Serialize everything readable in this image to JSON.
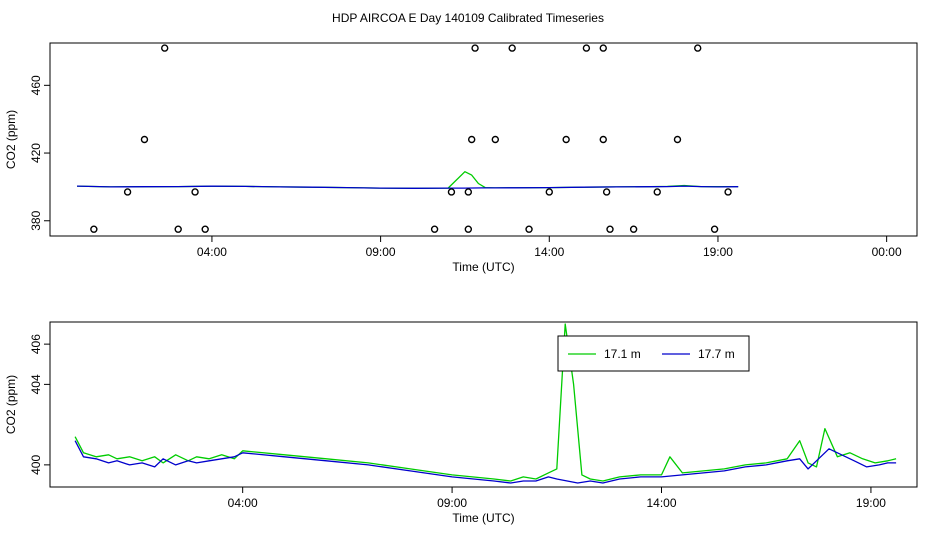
{
  "title": "HDP AIRCOA E  Day 140109  Calibrated Timeseries",
  "colors": {
    "green": "#00cc00",
    "blue": "#0000cc",
    "points": "#000000"
  },
  "chart_data": [
    {
      "type": "scatter",
      "xlabel": "Time (UTC)",
      "ylabel": "CO2 (ppm)",
      "xlim_hours": [
        -0.8,
        24.9
      ],
      "ylim": [
        371,
        485
      ],
      "x_ticks": [
        {
          "x": 4,
          "label": "04:00"
        },
        {
          "x": 9,
          "label": "09:00"
        },
        {
          "x": 14,
          "label": "14:00"
        },
        {
          "x": 19,
          "label": "19:00"
        },
        {
          "x": 24,
          "label": "00:00"
        }
      ],
      "y_ticks": [
        {
          "y": 380,
          "label": "380"
        },
        {
          "y": 420,
          "label": "420"
        },
        {
          "y": 460,
          "label": "460"
        }
      ],
      "grid": false,
      "points": [
        [
          0.5,
          375
        ],
        [
          1.5,
          397
        ],
        [
          2.0,
          428
        ],
        [
          2.6,
          482
        ],
        [
          3.0,
          375
        ],
        [
          3.5,
          397
        ],
        [
          3.8,
          375
        ],
        [
          10.6,
          375
        ],
        [
          11.1,
          397
        ],
        [
          11.6,
          375
        ],
        [
          11.6,
          397
        ],
        [
          11.7,
          428
        ],
        [
          11.8,
          482
        ],
        [
          12.4,
          428
        ],
        [
          12.9,
          482
        ],
        [
          13.4,
          375
        ],
        [
          14.0,
          397
        ],
        [
          14.5,
          428
        ],
        [
          15.1,
          482
        ],
        [
          15.6,
          482
        ],
        [
          15.6,
          428
        ],
        [
          15.7,
          397
        ],
        [
          15.8,
          375
        ],
        [
          16.5,
          375
        ],
        [
          17.2,
          397
        ],
        [
          17.8,
          428
        ],
        [
          18.4,
          482
        ],
        [
          18.9,
          375
        ],
        [
          19.3,
          397
        ]
      ],
      "series": [
        {
          "name": "17.1 m",
          "color": "#00cc00",
          "x": [
            0.0,
            1.0,
            2.0,
            3.0,
            4.0,
            5.0,
            6.0,
            7.0,
            8.0,
            9.0,
            10.0,
            11.0,
            11.5,
            11.7,
            11.9,
            12.1,
            12.4,
            13.0,
            14.0,
            15.0,
            16.0,
            17.0,
            17.5,
            18.0,
            18.5,
            19.0,
            19.6
          ],
          "y": [
            400.5,
            400.0,
            400.1,
            400.2,
            400.4,
            400.3,
            400.0,
            399.8,
            399.6,
            399.3,
            399.2,
            399.3,
            409.0,
            407.0,
            402.0,
            399.6,
            399.4,
            399.5,
            399.6,
            399.8,
            400.0,
            400.1,
            400.3,
            400.8,
            400.2,
            400.1,
            400.2
          ]
        },
        {
          "name": "17.7 m",
          "color": "#0000cc",
          "x": [
            0.0,
            1.0,
            2.0,
            3.0,
            4.0,
            5.0,
            6.0,
            7.0,
            8.0,
            9.0,
            10.0,
            11.0,
            11.5,
            12.0,
            12.4,
            13.0,
            14.0,
            15.0,
            16.0,
            17.0,
            17.5,
            18.0,
            18.5,
            19.0,
            19.6
          ],
          "y": [
            400.5,
            400.0,
            400.1,
            400.2,
            400.4,
            400.3,
            400.0,
            399.8,
            399.6,
            399.3,
            399.2,
            399.3,
            399.3,
            399.4,
            399.4,
            399.5,
            399.6,
            399.8,
            400.0,
            400.1,
            400.2,
            400.5,
            400.2,
            400.0,
            400.1
          ]
        }
      ]
    },
    {
      "type": "line",
      "xlabel": "Time (UTC)",
      "ylabel": "CO2 (ppm)",
      "xlim_hours": [
        -0.6,
        20.1
      ],
      "ylim": [
        398.9,
        407.1
      ],
      "x_ticks": [
        {
          "x": 4,
          "label": "04:00"
        },
        {
          "x": 9,
          "label": "09:00"
        },
        {
          "x": 14,
          "label": "14:00"
        },
        {
          "x": 19,
          "label": "19:00"
        }
      ],
      "y_ticks": [
        {
          "y": 400,
          "label": "400"
        },
        {
          "y": 404,
          "label": "404"
        },
        {
          "y": 406,
          "label": "406"
        }
      ],
      "grid": false,
      "legend": "top-right",
      "series": [
        {
          "name": "17.1 m",
          "color": "#00cc00",
          "x": [
            0.0,
            0.2,
            0.5,
            0.8,
            1.0,
            1.3,
            1.6,
            1.9,
            2.1,
            2.4,
            2.7,
            2.9,
            3.2,
            3.5,
            3.8,
            4.0,
            5.0,
            6.0,
            7.0,
            8.0,
            9.0,
            10.0,
            10.4,
            10.7,
            11.0,
            11.3,
            11.5,
            11.7,
            11.9,
            12.1,
            12.3,
            12.6,
            13.0,
            13.5,
            14.0,
            14.2,
            14.5,
            15.0,
            15.5,
            16.0,
            16.5,
            17.0,
            17.3,
            17.5,
            17.7,
            17.9,
            18.2,
            18.5,
            18.8,
            19.1,
            19.4,
            19.6
          ],
          "y": [
            401.4,
            400.6,
            400.4,
            400.5,
            400.3,
            400.4,
            400.2,
            400.4,
            400.1,
            400.5,
            400.2,
            400.4,
            400.3,
            400.5,
            400.3,
            400.7,
            400.5,
            400.3,
            400.1,
            399.8,
            399.5,
            399.3,
            399.2,
            399.4,
            399.3,
            399.6,
            399.8,
            407.0,
            404.0,
            399.5,
            399.3,
            399.2,
            399.4,
            399.5,
            399.5,
            400.4,
            399.6,
            399.7,
            399.8,
            400.0,
            400.1,
            400.3,
            401.2,
            400.1,
            399.9,
            401.8,
            400.4,
            400.6,
            400.3,
            400.1,
            400.2,
            400.3
          ]
        },
        {
          "name": "17.7 m",
          "color": "#0000cc",
          "x": [
            0.0,
            0.2,
            0.5,
            0.8,
            1.0,
            1.3,
            1.6,
            1.9,
            2.1,
            2.4,
            2.7,
            2.9,
            3.2,
            3.5,
            3.8,
            4.0,
            5.0,
            6.0,
            7.0,
            8.0,
            9.0,
            10.0,
            10.4,
            10.7,
            11.0,
            11.3,
            11.5,
            12.0,
            12.3,
            12.6,
            13.0,
            13.5,
            14.0,
            14.5,
            15.0,
            15.5,
            16.0,
            16.5,
            17.0,
            17.3,
            17.5,
            17.7,
            18.0,
            18.3,
            18.6,
            18.9,
            19.2,
            19.4,
            19.6
          ],
          "y": [
            401.2,
            400.4,
            400.3,
            400.1,
            400.2,
            400.0,
            400.1,
            399.9,
            400.3,
            400.0,
            400.2,
            400.1,
            400.2,
            400.3,
            400.4,
            400.6,
            400.4,
            400.2,
            400.0,
            399.7,
            399.4,
            399.2,
            399.1,
            399.2,
            399.2,
            399.4,
            399.3,
            399.1,
            399.2,
            399.1,
            399.3,
            399.4,
            399.4,
            399.5,
            399.6,
            399.7,
            399.9,
            400.0,
            400.2,
            400.3,
            399.8,
            400.2,
            400.8,
            400.5,
            400.2,
            399.9,
            400.0,
            400.1,
            400.1
          ]
        }
      ]
    }
  ]
}
